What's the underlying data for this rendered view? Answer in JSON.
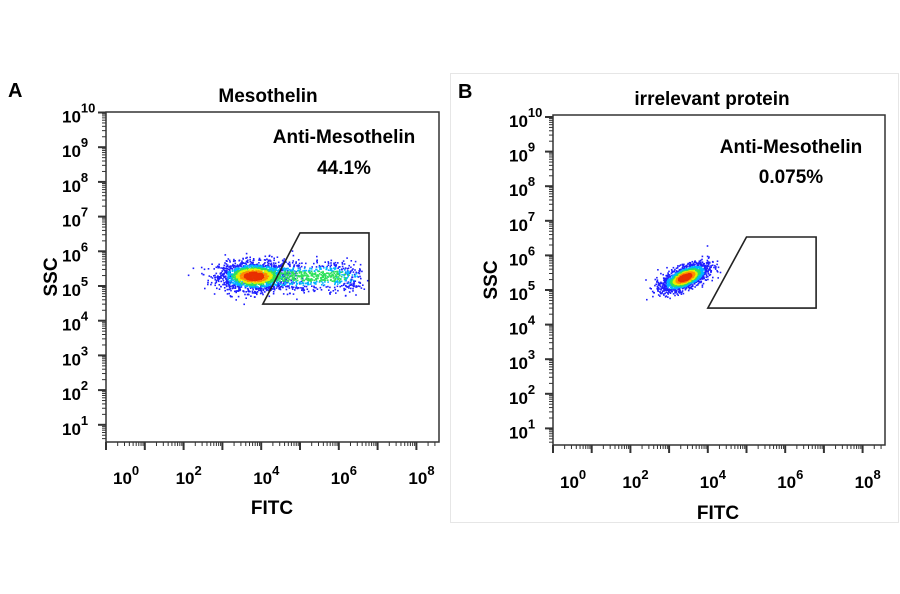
{
  "chart_data": [
    {
      "type": "scatter",
      "panel_label": "A",
      "title": "Mesothelin",
      "xlabel": "FITC",
      "ylabel": "SSC",
      "x_scale": "log",
      "y_scale": "log",
      "xlim": [
        1,
        400000000
      ],
      "ylim": [
        3,
        16000000000
      ],
      "x_tick_exponents": [
        0,
        2,
        4,
        6,
        8
      ],
      "y_tick_exponents": [
        1,
        2,
        3,
        4,
        5,
        6,
        7,
        8,
        9,
        10
      ],
      "gate": {
        "name": "Anti-Mesothelin",
        "percent": "44.1%",
        "vertices": [
          [
            11000,
            30000
          ],
          [
            100000,
            3400000
          ],
          [
            6000000,
            3400000
          ],
          [
            6000000,
            30000
          ]
        ]
      },
      "populations": [
        {
          "center": [
            6300,
            200000
          ],
          "spread_decades": [
            0.45,
            0.2
          ],
          "weight": 0.55
        },
        {
          "x_range": [
            1000,
            3000000
          ],
          "center_y": 200000,
          "spread_decades_y": 0.22,
          "weight": 0.45
        }
      ],
      "density_colors": [
        "#1f1fff",
        "#00b4ff",
        "#2ee05a",
        "#e6f000",
        "#ff8c00",
        "#e83000"
      ]
    },
    {
      "type": "scatter",
      "panel_label": "B",
      "title": "irrelevant protein",
      "xlabel": "FITC",
      "ylabel": "SSC",
      "x_scale": "log",
      "y_scale": "log",
      "xlim": [
        1,
        400000000
      ],
      "ylim": [
        3,
        16000000000
      ],
      "x_tick_exponents": [
        0,
        2,
        4,
        6,
        8
      ],
      "y_tick_exponents": [
        1,
        2,
        3,
        4,
        5,
        6,
        7,
        8,
        9,
        10
      ],
      "gate": {
        "name": "Anti-Mesothelin",
        "percent": "0.075%",
        "vertices": [
          [
            10000,
            30000
          ],
          [
            100000,
            3400000
          ],
          [
            6300000,
            3400000
          ],
          [
            6300000,
            30000
          ]
        ]
      },
      "populations": [
        {
          "center": [
            2500,
            240000
          ],
          "spread_decades": [
            0.3,
            0.2
          ],
          "correlation": 0.6,
          "weight": 1.0
        }
      ],
      "density_colors": [
        "#1f1fff",
        "#00b4ff",
        "#2ee05a",
        "#e6f000",
        "#ff8c00",
        "#e83000"
      ]
    }
  ]
}
